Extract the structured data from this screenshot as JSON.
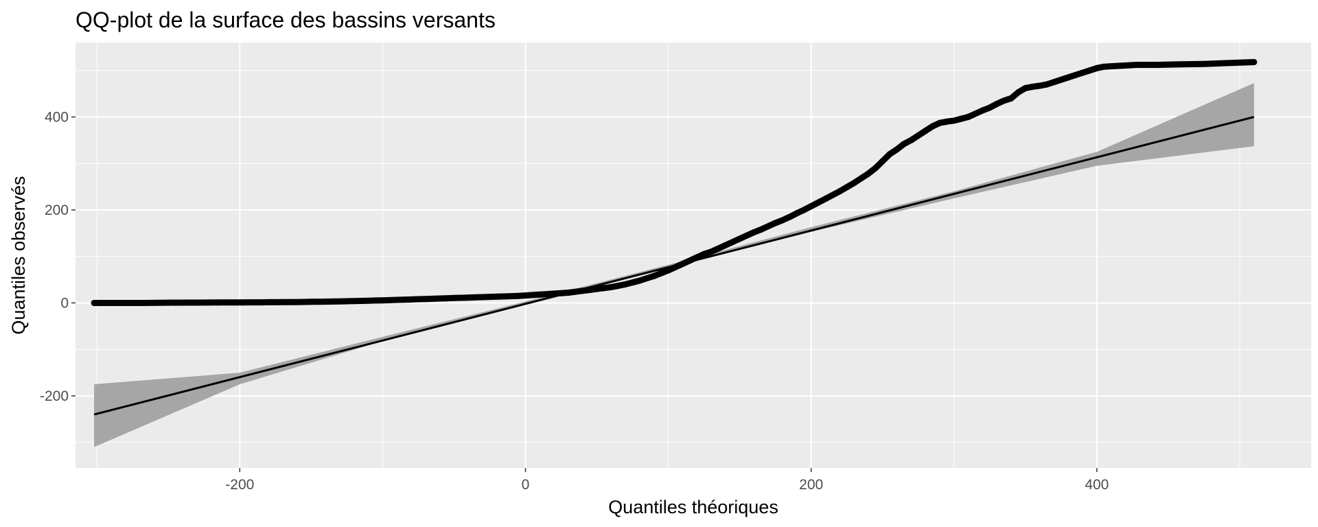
{
  "chart_data": {
    "type": "scatter",
    "title": "QQ-plot de la surface des bassins versants",
    "xlabel": "Quantiles théoriques",
    "ylabel": "Quantiles observés",
    "xlim": [
      -315,
      550
    ],
    "ylim": [
      -355,
      560
    ],
    "x_ticks": [
      -200,
      0,
      200,
      400
    ],
    "x_minor_ticks": [
      -300,
      -100,
      100,
      300,
      500
    ],
    "y_ticks": [
      -200,
      0,
      200,
      400
    ],
    "y_minor_ticks": [
      -300,
      -100,
      100,
      300,
      500
    ],
    "x_tick_labels": [
      "-200",
      "0",
      "200",
      "400"
    ],
    "y_tick_labels": [
      "-200",
      "0",
      "200",
      "400"
    ],
    "grid": true,
    "colors": {
      "panel": "#ebebeb",
      "grid": "#ffffff",
      "points": "#000000",
      "ribbon": "#a6a6a6",
      "line": "#000000"
    },
    "series": [
      {
        "kind": "points",
        "x": [
          -302,
          -268,
          -250,
          -238,
          -229,
          -222,
          -215,
          -209,
          -204,
          -199,
          -194,
          -190,
          -186,
          -182,
          -178,
          -174,
          -170,
          -166,
          -162,
          -158,
          -154,
          -150,
          -145,
          -140,
          -135,
          -130,
          -125,
          -120,
          -115,
          -110,
          -105,
          -100,
          -95,
          -90,
          -85,
          -80,
          -75,
          -70,
          -65,
          -60,
          -55,
          -50,
          -45,
          -40,
          -35,
          -30,
          -25,
          -20,
          -15,
          -10,
          -5,
          0,
          5,
          10,
          15,
          20,
          25,
          30,
          35,
          40,
          45,
          50,
          55,
          60,
          65,
          70,
          75,
          80,
          85,
          90,
          95,
          100,
          105,
          110,
          115,
          120,
          125,
          130,
          135,
          140,
          145,
          150,
          155,
          160,
          165,
          170,
          175,
          180,
          185,
          190,
          195,
          200,
          205,
          210,
          215,
          220,
          225,
          230,
          235,
          240,
          245,
          250,
          255,
          260,
          265,
          270,
          275,
          280,
          285,
          290,
          295,
          300,
          305,
          310,
          315,
          320,
          325,
          330,
          335,
          340,
          345,
          350,
          355,
          360,
          365,
          370,
          375,
          380,
          385,
          390,
          395,
          400,
          405,
          410,
          416,
          422,
          428,
          435,
          443,
          458,
          475,
          510
        ],
        "y": [
          0,
          0,
          0.5,
          0.6,
          0.7,
          0.8,
          0.9,
          1.0,
          1.0,
          1.1,
          1.2,
          1.3,
          1.3,
          1.4,
          1.5,
          1.6,
          1.7,
          1.8,
          1.9,
          2.0,
          2.2,
          2.4,
          2.6,
          2.8,
          3.0,
          3.3,
          3.6,
          4.0,
          4.4,
          4.8,
          5.2,
          5.6,
          6.0,
          6.5,
          7.0,
          7.5,
          8.0,
          8.5,
          9.0,
          9.5,
          10,
          10.5,
          11,
          11.5,
          12,
          12.5,
          13,
          13.5,
          14,
          14.5,
          15,
          16,
          17,
          18,
          19,
          20,
          21,
          22,
          24,
          26,
          28,
          30,
          32,
          34,
          37,
          40,
          44,
          48,
          53,
          58,
          64,
          70,
          77,
          84,
          91,
          98,
          105,
          110,
          117,
          124,
          131,
          138,
          145,
          152,
          158,
          165,
          172,
          178,
          185,
          193,
          200,
          208,
          216,
          224,
          232,
          240,
          249,
          258,
          268,
          278,
          290,
          305,
          320,
          330,
          342,
          350,
          360,
          370,
          380,
          387,
          390,
          392,
          396,
          400,
          407,
          414,
          420,
          428,
          435,
          440,
          453,
          462,
          465,
          467,
          470,
          475,
          480,
          485,
          490,
          495,
          500,
          505,
          508,
          509,
          510,
          511,
          512,
          512,
          512,
          513,
          514,
          518
        ]
      },
      {
        "kind": "reference_line",
        "x": [
          -302,
          510
        ],
        "y": [
          -240,
          400
        ]
      },
      {
        "kind": "confidence_band",
        "x": [
          -302,
          -200,
          -100,
          0,
          100,
          200,
          300,
          400,
          510
        ],
        "lower": [
          -310,
          -175,
          -82,
          -3,
          76,
          153,
          225,
          295,
          337
        ],
        "upper": [
          -175,
          -150,
          -73,
          3,
          82,
          163,
          240,
          325,
          473
        ]
      }
    ]
  }
}
